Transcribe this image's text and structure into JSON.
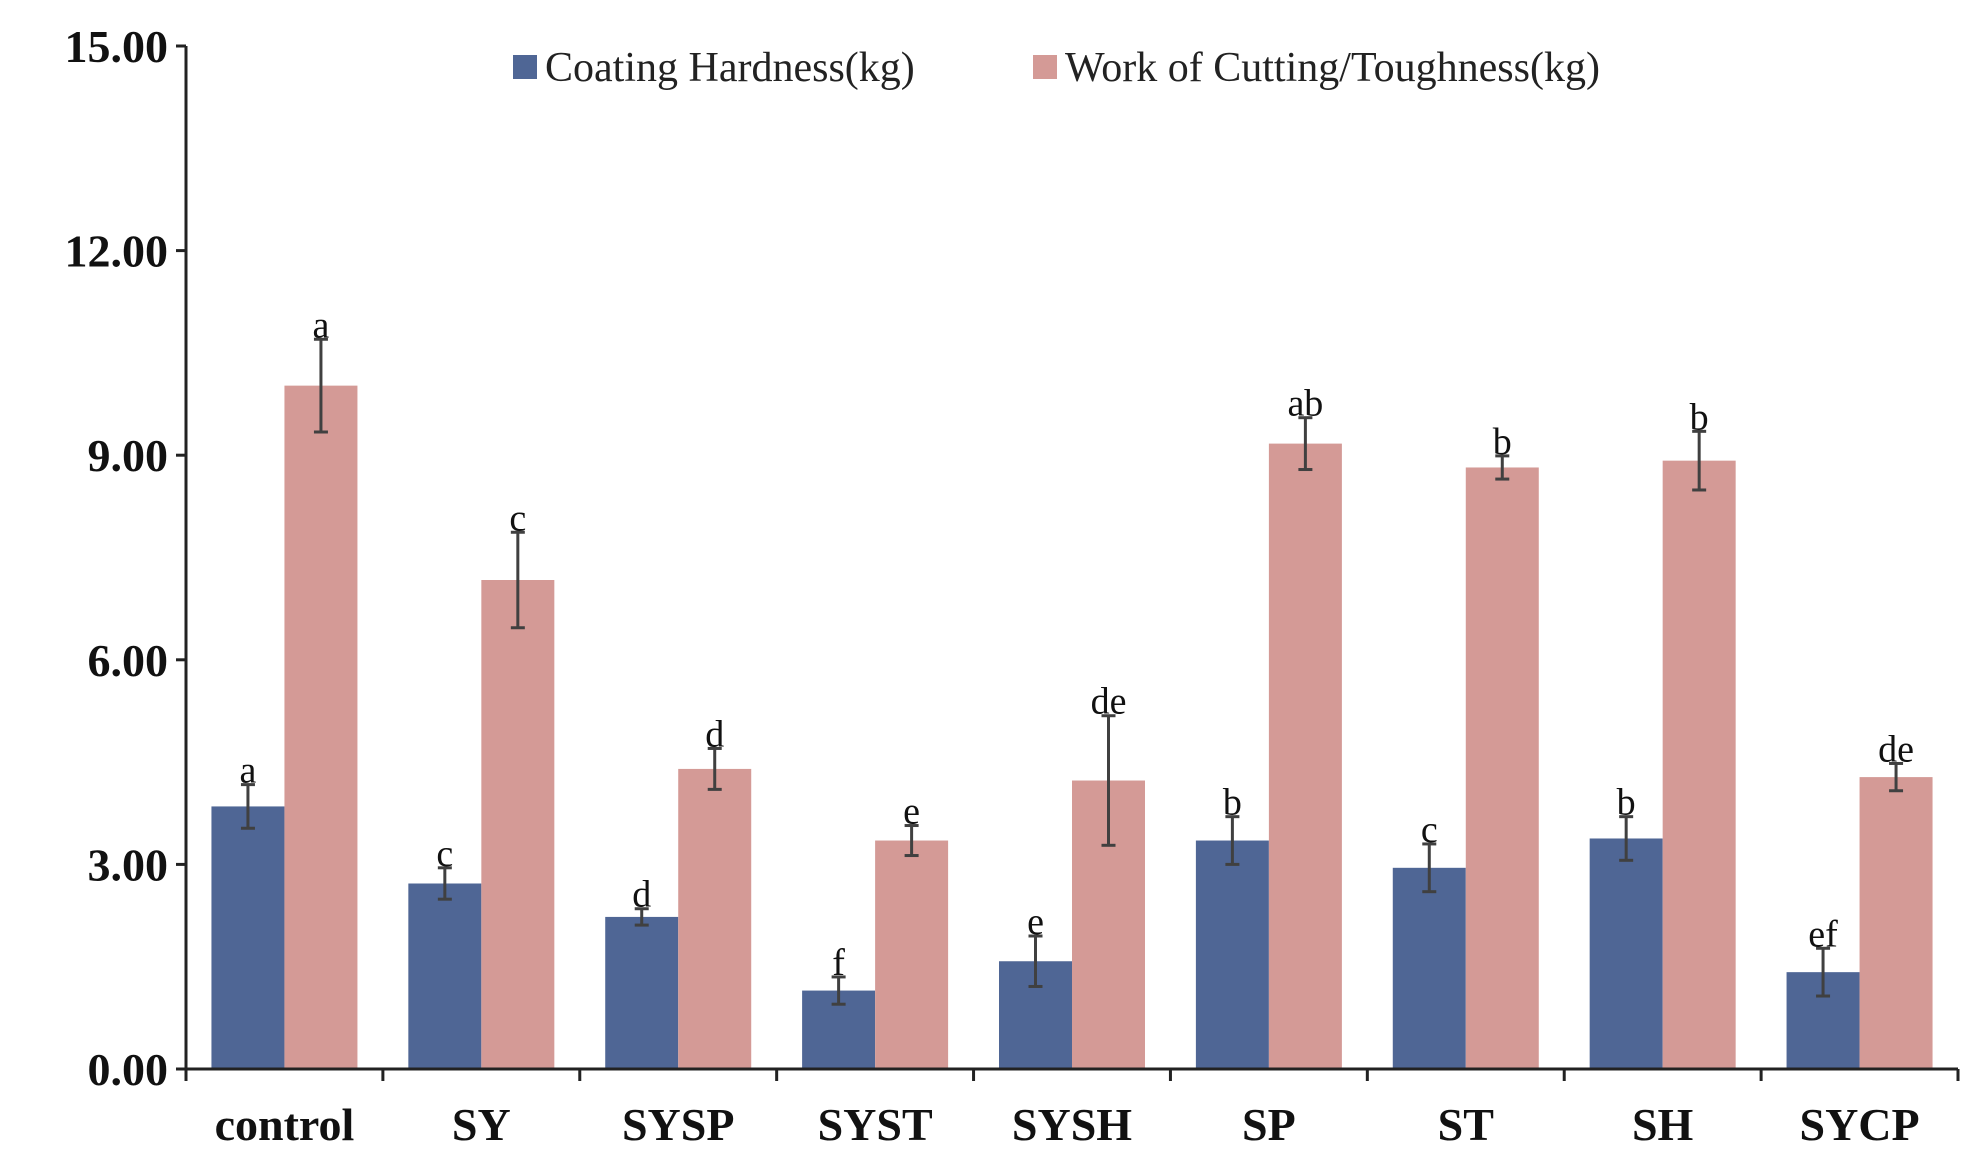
{
  "chart_data": {
    "type": "bar",
    "title": "",
    "xlabel": "",
    "ylabel": "",
    "ylim": [
      0,
      15
    ],
    "yticks": [
      "0.00",
      "3.00",
      "6.00",
      "9.00",
      "12.00",
      "15.00"
    ],
    "ytick_values": [
      0,
      3,
      6,
      9,
      12,
      15
    ],
    "grid": false,
    "legend_position": "top-center",
    "categories": [
      "control",
      "SY",
      "SYSP",
      "SYST",
      "SYSH",
      "SP",
      "ST",
      "SH",
      "SYCP"
    ],
    "series": [
      {
        "name": "Coating Hardness(kg)",
        "color": "#4f6695",
        "values": [
          3.85,
          2.72,
          2.23,
          1.15,
          1.58,
          3.35,
          2.95,
          3.38,
          1.42
        ],
        "errors": [
          0.32,
          0.23,
          0.12,
          0.2,
          0.37,
          0.35,
          0.35,
          0.32,
          0.35
        ],
        "labels": [
          "a",
          "c",
          "d",
          "f",
          "e",
          "b",
          "c",
          "b",
          "ef"
        ]
      },
      {
        "name": "Work of Cutting/Toughness(kg)",
        "color": "#d49a96",
        "values": [
          10.02,
          7.17,
          4.4,
          3.35,
          4.23,
          9.17,
          8.82,
          8.92,
          4.28
        ],
        "errors": [
          0.68,
          0.7,
          0.3,
          0.22,
          0.95,
          0.38,
          0.17,
          0.43,
          0.2
        ],
        "labels": [
          "a",
          "c",
          "d",
          "e",
          "de",
          "ab",
          "b",
          "b",
          "de"
        ]
      }
    ]
  }
}
